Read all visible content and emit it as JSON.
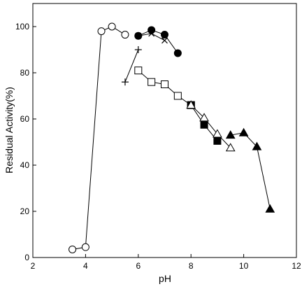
{
  "chart_data": {
    "type": "scatter",
    "xlabel": "pH",
    "ylabel": "Residual Activity(%)",
    "xlim": [
      2,
      12
    ],
    "ylim": [
      0,
      110
    ],
    "xticks": [
      2,
      4,
      6,
      8,
      10,
      12
    ],
    "yticks": [
      0,
      20,
      40,
      60,
      80,
      100
    ],
    "grid": false,
    "legend": "none",
    "series": [
      {
        "marker": "open-circle",
        "x": [
          3.5,
          4.0,
          4.6,
          5.0,
          5.5
        ],
        "y": [
          3.5,
          4.5,
          98,
          100,
          96.5
        ]
      },
      {
        "marker": "plus",
        "x": [
          5.5,
          6.0
        ],
        "y": [
          76,
          90
        ]
      },
      {
        "marker": "cross",
        "x": [
          6.0,
          6.5,
          7.0
        ],
        "y": [
          96,
          97,
          94
        ]
      },
      {
        "marker": "filled-circle",
        "x": [
          6.0,
          6.5,
          7.0,
          7.5
        ],
        "y": [
          96,
          98.5,
          96.5,
          88.5
        ]
      },
      {
        "marker": "open-square",
        "x": [
          6.0,
          6.5,
          7.0,
          7.5,
          8.0
        ],
        "y": [
          81,
          76,
          75,
          70,
          66
        ]
      },
      {
        "marker": "filled-square",
        "x": [
          8.0,
          8.5,
          9.0
        ],
        "y": [
          66,
          57.5,
          50.5
        ]
      },
      {
        "marker": "open-triangle",
        "x": [
          8.0,
          8.5,
          9.0,
          9.5
        ],
        "y": [
          66,
          60.5,
          53.5,
          47.5
        ]
      },
      {
        "marker": "filled-triangle",
        "x": [
          9.5,
          10.0,
          10.5,
          11.0
        ],
        "y": [
          53,
          54,
          48,
          21
        ]
      }
    ]
  }
}
